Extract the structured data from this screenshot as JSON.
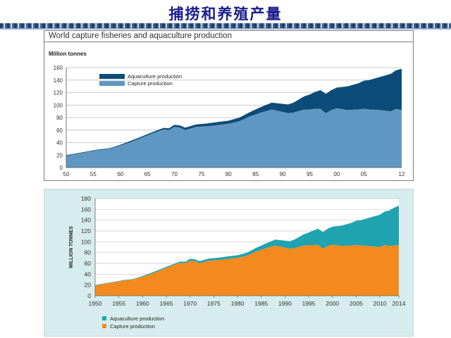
{
  "slide": {
    "title": "捕捞和养殖产量"
  },
  "chart_data": [
    {
      "type": "area",
      "stacked": true,
      "title": "World capture fisheries and aquaculture production",
      "ylabel": "Million tonnes",
      "xlabel": "",
      "xlim": [
        1950,
        2012
      ],
      "ylim": [
        0,
        160
      ],
      "y_ticks": [
        0,
        20,
        40,
        60,
        80,
        100,
        120,
        140,
        160
      ],
      "x_ticks": [
        1950,
        1955,
        1960,
        1965,
        1970,
        1975,
        1980,
        1985,
        1990,
        1995,
        2000,
        2005,
        2012
      ],
      "x_tick_labels": [
        "50",
        "55",
        "60",
        "65",
        "70",
        "75",
        "80",
        "85",
        "90",
        "95",
        "00",
        "05",
        "12"
      ],
      "grid": true,
      "legend_position": "top-left",
      "colors": {
        "aquaculture": "#0d4c78",
        "capture": "#5f97c2"
      },
      "x": [
        1950,
        1952,
        1954,
        1956,
        1958,
        1960,
        1962,
        1964,
        1966,
        1968,
        1969,
        1970,
        1971,
        1972,
        1974,
        1976,
        1978,
        1980,
        1982,
        1984,
        1986,
        1988,
        1989,
        1990,
        1991,
        1992,
        1994,
        1995,
        1996,
        1997,
        1998,
        1999,
        2000,
        2002,
        2004,
        2005,
        2006,
        2008,
        2010,
        2011,
        2012
      ],
      "series": [
        {
          "name": "Capture production",
          "values": [
            19,
            22,
            25,
            28,
            30,
            35,
            41,
            48,
            55,
            61,
            60,
            65,
            64,
            60,
            65,
            66,
            68,
            70,
            74,
            82,
            88,
            93,
            91,
            89,
            87,
            88,
            93,
            93,
            94,
            94,
            87,
            92,
            95,
            92,
            93,
            94,
            93,
            92,
            90,
            94,
            92
          ]
        },
        {
          "name": "Aquaculture production",
          "values": [
            1,
            1,
            1,
            1,
            1,
            1.5,
            2,
            2,
            2,
            2.5,
            3,
            3.5,
            3.5,
            4,
            4,
            4.5,
            5,
            5,
            6,
            7,
            9,
            11,
            12,
            13,
            14,
            16,
            21,
            24,
            27,
            30,
            31,
            32,
            33,
            38,
            42,
            45,
            47,
            53,
            60,
            62,
            66
          ]
        }
      ]
    },
    {
      "type": "area",
      "stacked": true,
      "title": "",
      "ylabel": "MILLION TONNES",
      "xlabel": "",
      "xlim": [
        1950,
        2014
      ],
      "ylim": [
        0,
        180
      ],
      "y_ticks": [
        0,
        20,
        40,
        60,
        80,
        100,
        120,
        140,
        160,
        180
      ],
      "x_ticks": [
        1950,
        1955,
        1960,
        1965,
        1970,
        1975,
        1980,
        1985,
        1990,
        1995,
        2000,
        2005,
        2010,
        2014
      ],
      "x_tick_labels": [
        "1950",
        "1955",
        "1960",
        "1965",
        "1970",
        "1975",
        "1980",
        "1985",
        "1990",
        "1995",
        "2000",
        "2005",
        "2010",
        "2014"
      ],
      "grid": true,
      "legend_position": "bottom-left",
      "colors": {
        "aquaculture": "#1fa3b0",
        "capture": "#f48a1e"
      },
      "x": [
        1950,
        1952,
        1954,
        1956,
        1958,
        1960,
        1962,
        1964,
        1966,
        1968,
        1969,
        1970,
        1971,
        1972,
        1974,
        1976,
        1978,
        1980,
        1982,
        1984,
        1986,
        1988,
        1989,
        1990,
        1991,
        1992,
        1994,
        1995,
        1996,
        1997,
        1998,
        1999,
        2000,
        2002,
        2004,
        2005,
        2006,
        2008,
        2010,
        2011,
        2012,
        2013,
        2014
      ],
      "series": [
        {
          "name": "Aquaculture production",
          "values": [
            1,
            1,
            1,
            1,
            1,
            1.5,
            2,
            2,
            2,
            2.5,
            3,
            3.5,
            3.5,
            4,
            4,
            4.5,
            5,
            5,
            6,
            7,
            9,
            11,
            12,
            13,
            14,
            16,
            21,
            24,
            27,
            30,
            31,
            32,
            33,
            38,
            42,
            45,
            47,
            53,
            60,
            62,
            66,
            70,
            73
          ]
        },
        {
          "name": "Capture production",
          "values": [
            19,
            22,
            25,
            28,
            30,
            35,
            41,
            48,
            55,
            61,
            60,
            65,
            64,
            60,
            65,
            66,
            68,
            70,
            74,
            82,
            88,
            93,
            91,
            89,
            87,
            88,
            93,
            93,
            94,
            94,
            87,
            92,
            95,
            92,
            93,
            94,
            93,
            92,
            90,
            94,
            92,
            93,
            94
          ]
        }
      ]
    }
  ]
}
